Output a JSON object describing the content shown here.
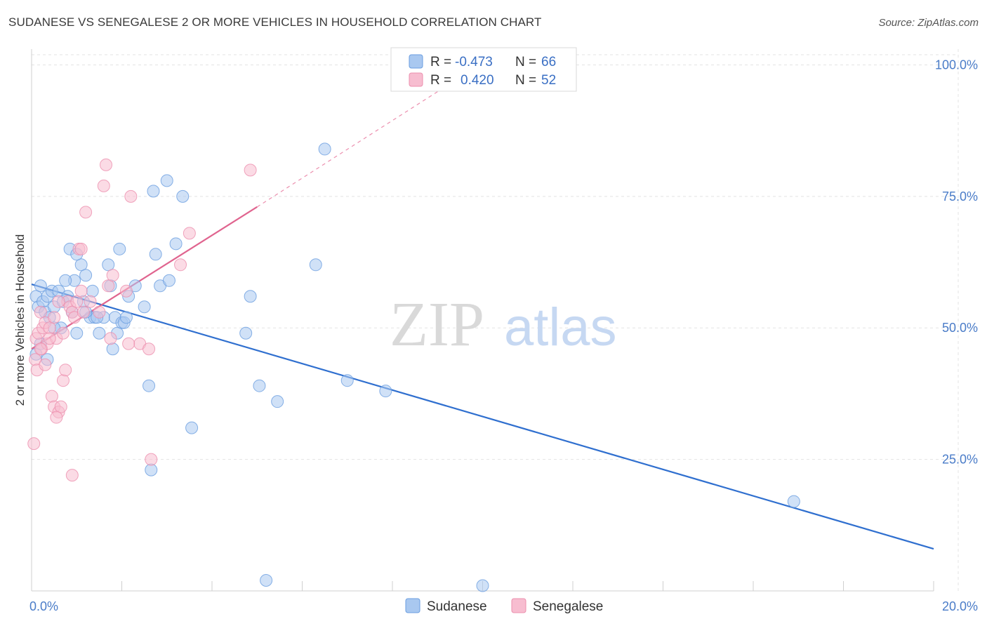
{
  "title": "SUDANESE VS SENEGALESE 2 OR MORE VEHICLES IN HOUSEHOLD CORRELATION CHART",
  "source": "Source: ZipAtlas.com",
  "watermark": {
    "zip": "ZIP",
    "atlas": "atlas"
  },
  "colors": {
    "sudanese_fill": "#a9c8f0",
    "sudanese_stroke": "#6a9ee0",
    "sudanese_line": "#2f6fcf",
    "senegalese_fill": "#f7bdd0",
    "senegalese_stroke": "#ec8fae",
    "senegalese_line": "#e0648f",
    "tick_text": "#4a7cc8",
    "grid": "#e3e3e3"
  },
  "legend": {
    "rows": [
      {
        "r_label": "R =",
        "r_value": "-0.473",
        "n_label": "N =",
        "n_value": "66"
      },
      {
        "r_label": "R =",
        "r_value": "0.420",
        "n_label": "N =",
        "n_value": "52"
      }
    ]
  },
  "chart_data": {
    "type": "scatter",
    "title": "SUDANESE VS SENEGALESE 2 OR MORE VEHICLES IN HOUSEHOLD CORRELATION CHART",
    "xlabel": "",
    "ylabel": "2 or more Vehicles in Household",
    "xlim": [
      0,
      20
    ],
    "ylim": [
      0,
      103
    ],
    "x_tick_labels": [
      "0.0%",
      "20.0%"
    ],
    "y_ticks": [
      25,
      50,
      75,
      100
    ],
    "y_tick_labels": [
      "25.0%",
      "50.0%",
      "75.0%",
      "100.0%"
    ],
    "grid": true,
    "legend_position": "top-center",
    "series": [
      {
        "name": "Sudanese",
        "points": [
          [
            0.1,
            56
          ],
          [
            0.15,
            54
          ],
          [
            0.2,
            58
          ],
          [
            0.25,
            55
          ],
          [
            0.3,
            53
          ],
          [
            0.35,
            56
          ],
          [
            0.4,
            52
          ],
          [
            0.45,
            57
          ],
          [
            0.5,
            54
          ],
          [
            0.6,
            57
          ],
          [
            0.65,
            50
          ],
          [
            0.7,
            55
          ],
          [
            0.8,
            56
          ],
          [
            0.85,
            65
          ],
          [
            0.9,
            53
          ],
          [
            0.95,
            59
          ],
          [
            1.0,
            49
          ],
          [
            1.1,
            62
          ],
          [
            1.15,
            55
          ],
          [
            1.2,
            60
          ],
          [
            1.3,
            52
          ],
          [
            1.35,
            57
          ],
          [
            1.4,
            52
          ],
          [
            1.5,
            49
          ],
          [
            1.6,
            52
          ],
          [
            1.7,
            62
          ],
          [
            1.75,
            58
          ],
          [
            1.8,
            46
          ],
          [
            1.85,
            52
          ],
          [
            1.9,
            49
          ],
          [
            1.95,
            65
          ],
          [
            2.0,
            51
          ],
          [
            2.05,
            51
          ],
          [
            2.1,
            52
          ],
          [
            2.15,
            56
          ],
          [
            2.3,
            58
          ],
          [
            2.5,
            54
          ],
          [
            2.6,
            39
          ],
          [
            2.65,
            23
          ],
          [
            2.7,
            76
          ],
          [
            2.75,
            64
          ],
          [
            2.85,
            58
          ],
          [
            3.0,
            78
          ],
          [
            3.05,
            59
          ],
          [
            3.2,
            66
          ],
          [
            3.35,
            75
          ],
          [
            3.55,
            31
          ],
          [
            4.75,
            49
          ],
          [
            4.85,
            56
          ],
          [
            5.05,
            39
          ],
          [
            5.2,
            2
          ],
          [
            5.45,
            36
          ],
          [
            6.3,
            62
          ],
          [
            6.5,
            84
          ],
          [
            7.0,
            40
          ],
          [
            7.85,
            38
          ],
          [
            10.0,
            1
          ],
          [
            16.9,
            17
          ],
          [
            0.1,
            45
          ],
          [
            0.2,
            47
          ],
          [
            0.5,
            50
          ],
          [
            0.75,
            59
          ],
          [
            1.0,
            64
          ],
          [
            1.2,
            53
          ],
          [
            1.45,
            52
          ],
          [
            0.35,
            44
          ]
        ]
      },
      {
        "name": "Senegalese",
        "points": [
          [
            0.05,
            28
          ],
          [
            0.08,
            44
          ],
          [
            0.1,
            48
          ],
          [
            0.12,
            42
          ],
          [
            0.15,
            49
          ],
          [
            0.2,
            53
          ],
          [
            0.22,
            46
          ],
          [
            0.25,
            50
          ],
          [
            0.3,
            51
          ],
          [
            0.35,
            47
          ],
          [
            0.4,
            50
          ],
          [
            0.45,
            37
          ],
          [
            0.5,
            35
          ],
          [
            0.55,
            48
          ],
          [
            0.6,
            34
          ],
          [
            0.65,
            35
          ],
          [
            0.7,
            40
          ],
          [
            0.75,
            42
          ],
          [
            0.8,
            55
          ],
          [
            0.85,
            54
          ],
          [
            0.9,
            53
          ],
          [
            0.95,
            52
          ],
          [
            1.0,
            55
          ],
          [
            1.05,
            65
          ],
          [
            1.1,
            65
          ],
          [
            1.15,
            53
          ],
          [
            1.2,
            72
          ],
          [
            1.3,
            55
          ],
          [
            1.5,
            53
          ],
          [
            1.6,
            77
          ],
          [
            1.65,
            81
          ],
          [
            1.7,
            58
          ],
          [
            1.75,
            48
          ],
          [
            1.8,
            60
          ],
          [
            2.1,
            57
          ],
          [
            2.2,
            75
          ],
          [
            2.4,
            47
          ],
          [
            2.6,
            46
          ],
          [
            2.65,
            25
          ],
          [
            3.3,
            62
          ],
          [
            3.5,
            68
          ],
          [
            4.85,
            80
          ],
          [
            0.2,
            46
          ],
          [
            0.3,
            43
          ],
          [
            0.5,
            52
          ],
          [
            0.7,
            49
          ],
          [
            0.9,
            22
          ],
          [
            1.1,
            57
          ],
          [
            0.6,
            55
          ],
          [
            0.4,
            48
          ],
          [
            0.55,
            33
          ],
          [
            2.15,
            47
          ]
        ]
      }
    ],
    "trend_lines": [
      {
        "series": "Sudanese",
        "x": [
          0,
          20
        ],
        "y": [
          58.3,
          8.0
        ]
      },
      {
        "series": "Senegalese",
        "x": [
          0,
          5.0
        ],
        "y": [
          46.0,
          73.0
        ],
        "dashed_extension_to": [
          9.2,
          96
        ]
      }
    ]
  },
  "bottom_legend": [
    {
      "label": "Sudanese"
    },
    {
      "label": "Senegalese"
    }
  ]
}
